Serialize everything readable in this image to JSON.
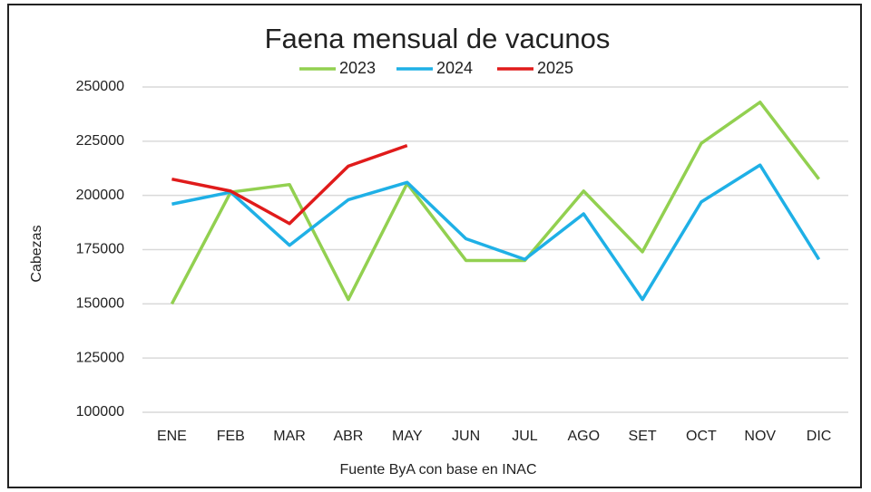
{
  "chart_data": {
    "type": "line",
    "title": "Faena mensual de vacunos",
    "y_label": "Cabezas",
    "source": "Fuente ByA con base en INAC",
    "categories": [
      "ENE",
      "FEB",
      "MAR",
      "ABR",
      "MAY",
      "JUN",
      "JUL",
      "AGO",
      "SET",
      "OCT",
      "NOV",
      "DIC"
    ],
    "series": [
      {
        "name": "2023",
        "color": "#92d050",
        "values": [
          150000,
          201500,
          205000,
          152000,
          205500,
          170000,
          170000,
          202000,
          174000,
          224000,
          243000,
          207500
        ]
      },
      {
        "name": "2024",
        "color": "#1fb0e6",
        "values": [
          196000,
          201500,
          177000,
          198000,
          206000,
          180000,
          170500,
          191500,
          152000,
          197000,
          214000,
          170500
        ]
      },
      {
        "name": "2025",
        "color": "#e01b1b",
        "values": [
          207500,
          202000,
          187000,
          213500,
          223000,
          null,
          null,
          null,
          null,
          null,
          null,
          null
        ]
      }
    ],
    "ylim": [
      100000,
      250000
    ],
    "yticks": [
      100000,
      125000,
      150000,
      175000,
      200000,
      225000,
      250000
    ],
    "grid": true,
    "legend": "top"
  }
}
